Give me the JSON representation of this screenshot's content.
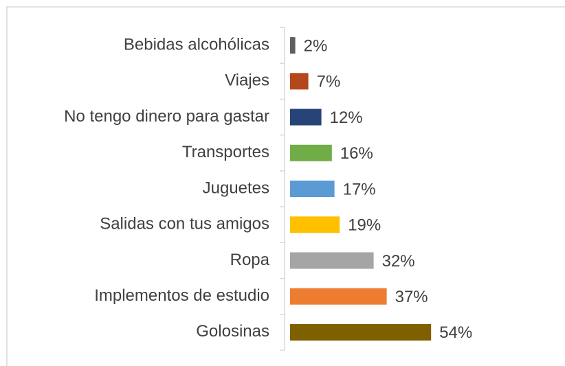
{
  "chart_data": {
    "type": "bar",
    "orientation": "horizontal",
    "categories": [
      "Bebidas alcohólicas",
      "Viajes",
      "No tengo dinero para gastar",
      "Transportes",
      "Juguetes",
      "Salidas con tus amigos",
      "Ropa",
      "Implementos de estudio",
      "Golosinas"
    ],
    "values": [
      2,
      7,
      12,
      16,
      17,
      19,
      32,
      37,
      54
    ],
    "value_labels": [
      "2%",
      "7%",
      "12%",
      "16%",
      "17%",
      "19%",
      "32%",
      "37%",
      "54%"
    ],
    "colors": [
      "#5f5f5f",
      "#b4471b",
      "#264478",
      "#70ad47",
      "#5b9bd5",
      "#ffc000",
      "#a5a5a5",
      "#ed7d31",
      "#7f6000"
    ]
  }
}
